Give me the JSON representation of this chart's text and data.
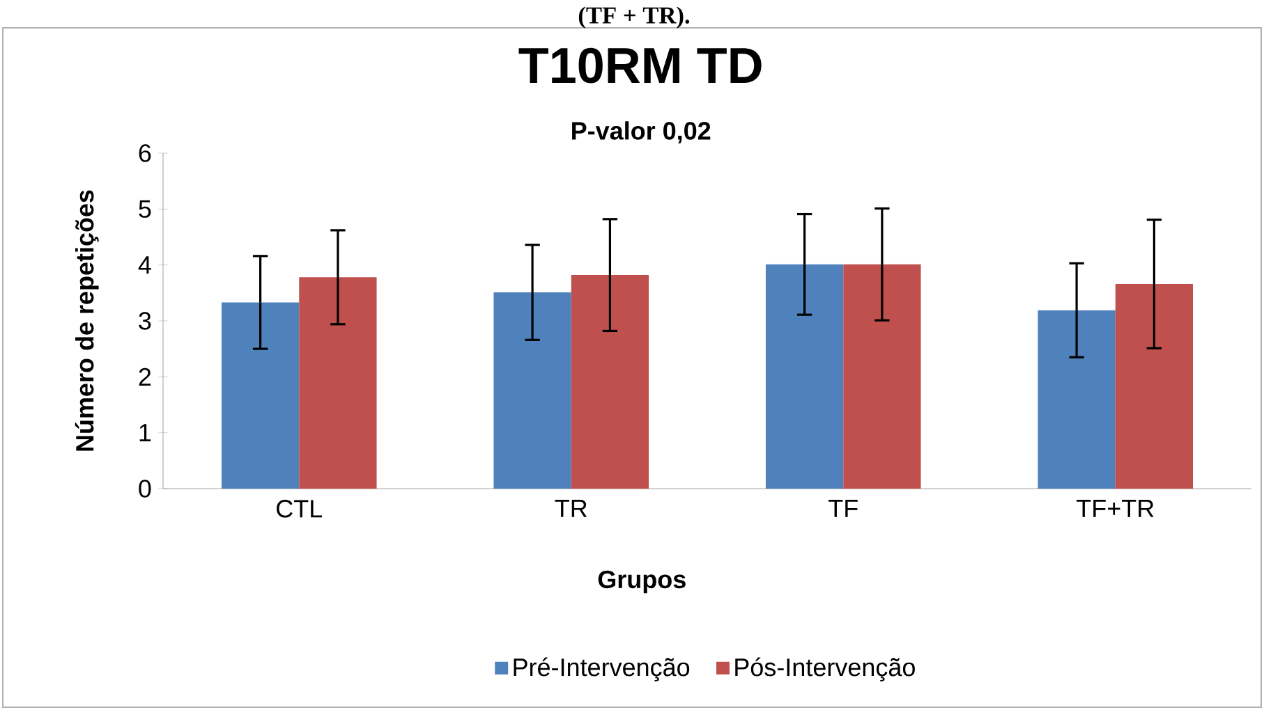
{
  "chart_data": {
    "type": "bar",
    "title": "T10RM TD",
    "subtitle": "P-valor 0,02",
    "xlabel": "Grupos",
    "ylabel": "Número de repetições",
    "annotations": [
      "(TF + TR)."
    ],
    "categories": [
      "CTL",
      "TR",
      "TF",
      "TF+TR"
    ],
    "series": [
      {
        "name": "Pré-Intervenção",
        "color": "#4f81bd",
        "values": [
          3.33,
          3.51,
          4.01,
          3.19
        ],
        "errors": [
          0.83,
          0.85,
          0.9,
          0.84
        ]
      },
      {
        "name": "Pós-Intervenção",
        "color": "#c0504d",
        "values": [
          3.78,
          3.82,
          4.01,
          3.66
        ],
        "errors": [
          0.84,
          1.0,
          1.0,
          1.15
        ]
      }
    ],
    "ylim": [
      0,
      6
    ],
    "yticks": [
      0,
      1,
      2,
      3,
      4,
      5,
      6
    ],
    "grid": false,
    "legend": "bottom"
  }
}
